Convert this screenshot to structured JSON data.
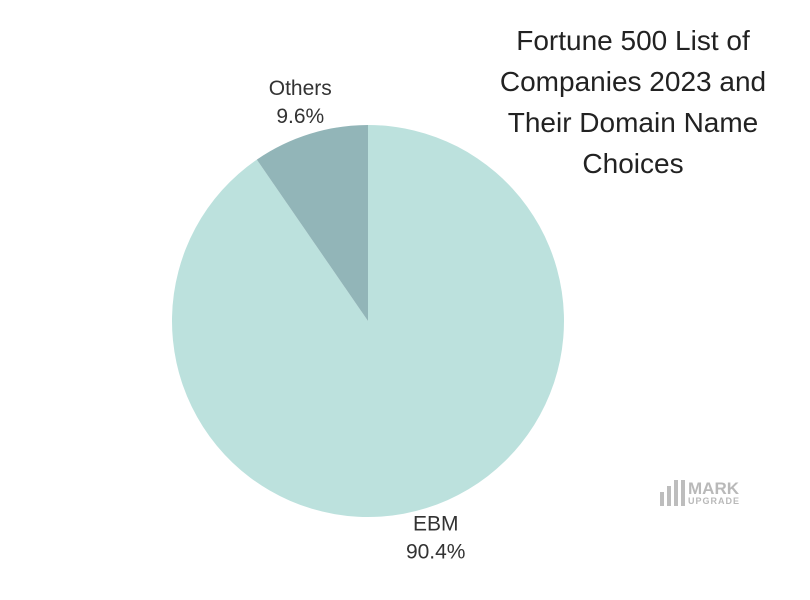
{
  "chart_data": {
    "type": "pie",
    "title": "Fortune 500 List of Companies 2023 and Their Domain Name Choices",
    "categories": [
      "EBM",
      "Others"
    ],
    "values": [
      90.4,
      9.6
    ],
    "value_labels": [
      "90.4%",
      "9.6%"
    ],
    "colors": [
      "#bce1dd",
      "#92b5b8"
    ]
  },
  "watermark": {
    "line1": "MARK",
    "line2": "UPGRADE"
  }
}
